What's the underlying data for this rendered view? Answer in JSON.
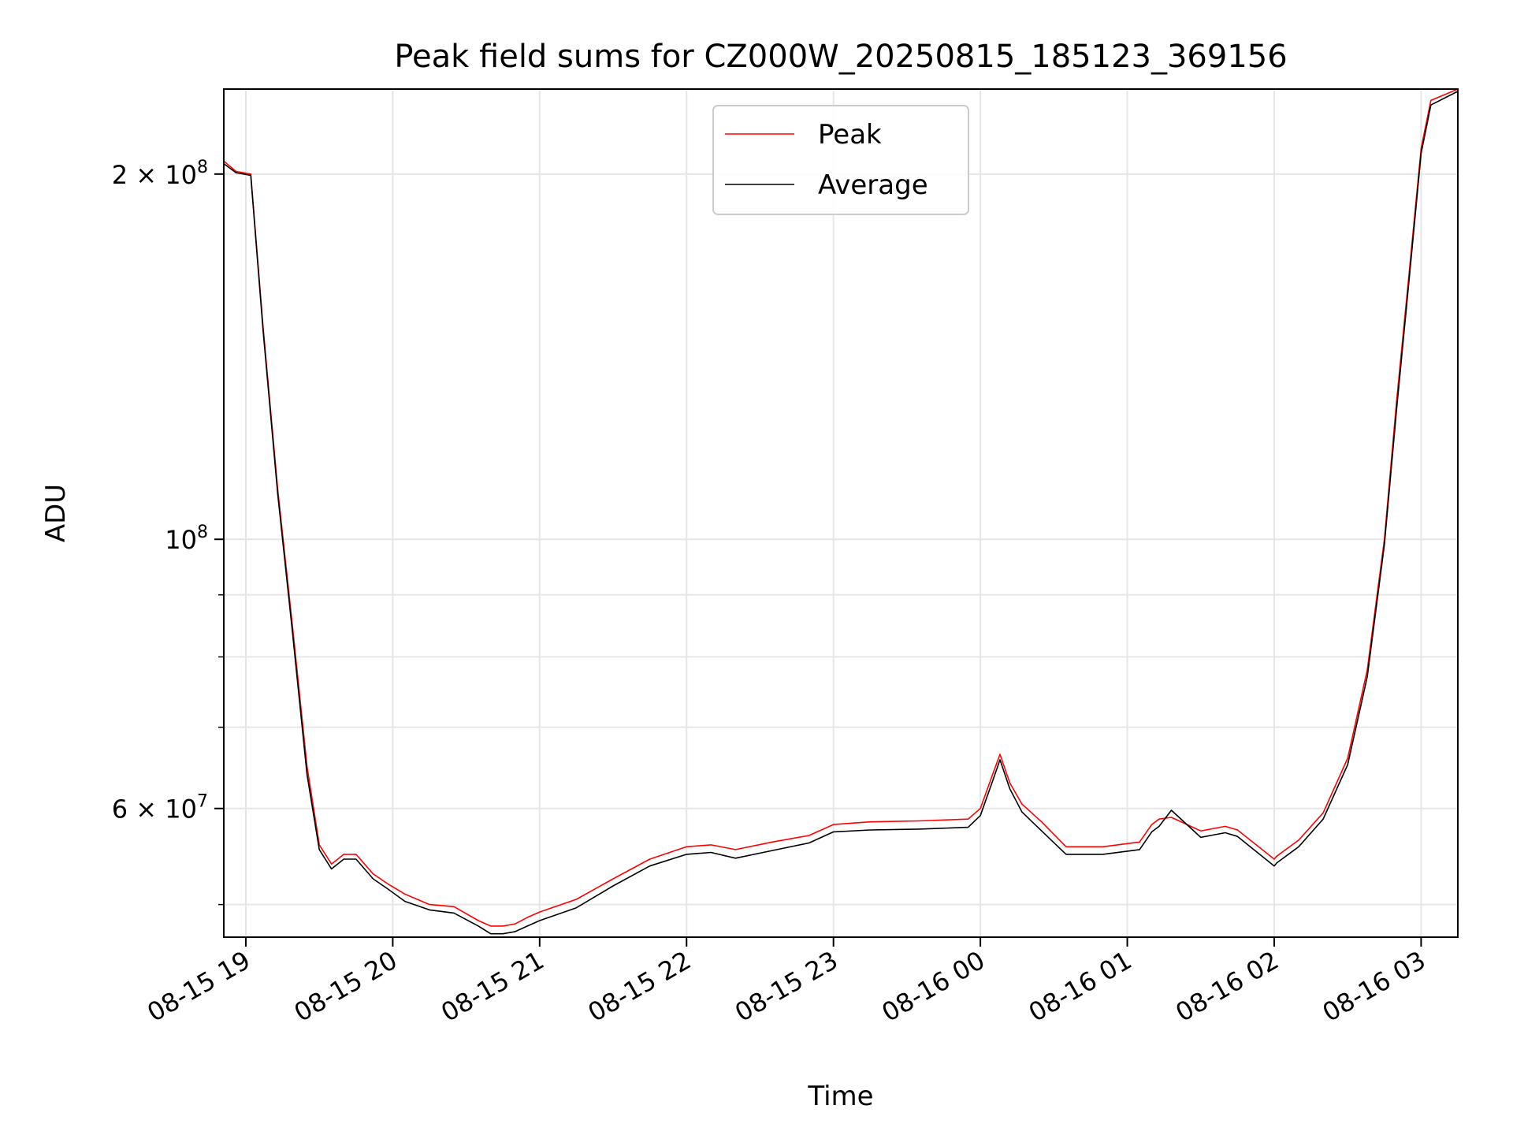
{
  "chart_data": {
    "type": "line",
    "title": "Peak field sums for CZ000W_20250815_185123_369156",
    "xlabel": "Time",
    "ylabel": "ADU",
    "yscale": "log",
    "xlim": [
      "2025-08-15 18:51",
      "2025-08-16 03:15"
    ],
    "ylim": [
      47000000,
      235000000
    ],
    "grid": true,
    "legend": {
      "position": "top-center",
      "entries": [
        "Peak",
        "Average"
      ]
    },
    "x_ticks": [
      "08-15 19",
      "08-15 20",
      "08-15 21",
      "08-15 22",
      "08-15 23",
      "08-16 00",
      "08-16 01",
      "08-16 02",
      "08-16 03"
    ],
    "y_ticks": [
      {
        "value": 200000000,
        "mantissa": "2",
        "exponent": "8"
      },
      {
        "value": 100000000,
        "mantissa": "",
        "exponent": "8"
      },
      {
        "value": 60000000,
        "mantissa": "6",
        "exponent": "7"
      }
    ],
    "series": [
      {
        "name": "Peak",
        "color": "#ff0000",
        "x": [
          "2025-08-15 18:51",
          "2025-08-15 18:56",
          "2025-08-15 19:02",
          "2025-08-15 19:07",
          "2025-08-15 19:13",
          "2025-08-15 19:19",
          "2025-08-15 19:25",
          "2025-08-15 19:30",
          "2025-08-15 19:35",
          "2025-08-15 19:40",
          "2025-08-15 19:45",
          "2025-08-15 19:52",
          "2025-08-15 19:58",
          "2025-08-15 20:05",
          "2025-08-15 20:15",
          "2025-08-15 20:25",
          "2025-08-15 20:35",
          "2025-08-15 20:40",
          "2025-08-15 20:45",
          "2025-08-15 20:50",
          "2025-08-15 20:55",
          "2025-08-15 21:00",
          "2025-08-15 21:15",
          "2025-08-15 21:30",
          "2025-08-15 21:45",
          "2025-08-15 22:00",
          "2025-08-15 22:10",
          "2025-08-15 22:20",
          "2025-08-15 22:35",
          "2025-08-15 22:50",
          "2025-08-15 23:00",
          "2025-08-15 23:15",
          "2025-08-15 23:35",
          "2025-08-15 23:55",
          "2025-08-16 00:00",
          "2025-08-16 00:05",
          "2025-08-16 00:08",
          "2025-08-16 00:12",
          "2025-08-16 00:17",
          "2025-08-16 00:25",
          "2025-08-16 00:35",
          "2025-08-16 00:50",
          "2025-08-16 01:05",
          "2025-08-16 01:10",
          "2025-08-16 01:13",
          "2025-08-16 01:18",
          "2025-08-16 01:30",
          "2025-08-16 01:40",
          "2025-08-16 01:45",
          "2025-08-16 02:00",
          "2025-08-16 02:01",
          "2025-08-16 02:10",
          "2025-08-16 02:20",
          "2025-08-16 02:30",
          "2025-08-16 02:38",
          "2025-08-16 02:45",
          "2025-08-16 02:50",
          "2025-08-16 02:55",
          "2025-08-16 03:00",
          "2025-08-16 03:04",
          "2025-08-16 03:15"
        ],
        "values": [
          205000000,
          201000000,
          200000000,
          150000000,
          110000000,
          85000000,
          65000000,
          56000000,
          54000000,
          55000000,
          55000000,
          53000000,
          52000000,
          51000000,
          50000000,
          49800000,
          48500000,
          48000000,
          48000000,
          48200000,
          48800000,
          49300000,
          50500000,
          52500000,
          54500000,
          55800000,
          56000000,
          55500000,
          56300000,
          57000000,
          58200000,
          58500000,
          58600000,
          58800000,
          60000000,
          64000000,
          66500000,
          63000000,
          60500000,
          58500000,
          55800000,
          55800000,
          56300000,
          58200000,
          58800000,
          59000000,
          57500000,
          58000000,
          57600000,
          54500000,
          54800000,
          56500000,
          59500000,
          66000000,
          78000000,
          100000000,
          130000000,
          165000000,
          210000000,
          230000000,
          235000000
        ]
      },
      {
        "name": "Average",
        "color": "#000000",
        "x": [
          "2025-08-15 18:51",
          "2025-08-15 18:56",
          "2025-08-15 19:02",
          "2025-08-15 19:07",
          "2025-08-15 19:13",
          "2025-08-15 19:19",
          "2025-08-15 19:25",
          "2025-08-15 19:30",
          "2025-08-15 19:35",
          "2025-08-15 19:40",
          "2025-08-15 19:45",
          "2025-08-15 19:52",
          "2025-08-15 19:58",
          "2025-08-15 20:05",
          "2025-08-15 20:15",
          "2025-08-15 20:25",
          "2025-08-15 20:35",
          "2025-08-15 20:40",
          "2025-08-15 20:45",
          "2025-08-15 20:50",
          "2025-08-15 20:55",
          "2025-08-15 21:00",
          "2025-08-15 21:15",
          "2025-08-15 21:30",
          "2025-08-15 21:45",
          "2025-08-15 22:00",
          "2025-08-15 22:10",
          "2025-08-15 22:20",
          "2025-08-15 22:35",
          "2025-08-15 22:50",
          "2025-08-15 23:00",
          "2025-08-15 23:15",
          "2025-08-15 23:35",
          "2025-08-15 23:55",
          "2025-08-16 00:00",
          "2025-08-16 00:05",
          "2025-08-16 00:08",
          "2025-08-16 00:12",
          "2025-08-16 00:17",
          "2025-08-16 00:25",
          "2025-08-16 00:35",
          "2025-08-16 00:50",
          "2025-08-16 01:05",
          "2025-08-16 01:10",
          "2025-08-16 01:13",
          "2025-08-16 01:18",
          "2025-08-16 01:30",
          "2025-08-16 01:40",
          "2025-08-16 01:45",
          "2025-08-16 02:00",
          "2025-08-16 02:01",
          "2025-08-16 02:10",
          "2025-08-16 02:20",
          "2025-08-16 02:30",
          "2025-08-16 02:38",
          "2025-08-16 02:45",
          "2025-08-16 02:50",
          "2025-08-16 02:55",
          "2025-08-16 03:00",
          "2025-08-16 03:04",
          "2025-08-16 03:15"
        ],
        "values": [
          204000000,
          200500000,
          199500000,
          149000000,
          109000000,
          84000000,
          64000000,
          55500000,
          53500000,
          54500000,
          54500000,
          52500000,
          51500000,
          50300000,
          49500000,
          49200000,
          48000000,
          47300000,
          47300000,
          47500000,
          48000000,
          48500000,
          49700000,
          51800000,
          53800000,
          55000000,
          55200000,
          54600000,
          55400000,
          56200000,
          57400000,
          57600000,
          57700000,
          57900000,
          59200000,
          63200000,
          65800000,
          62300000,
          59600000,
          57500000,
          55000000,
          55000000,
          55500000,
          57400000,
          58000000,
          59800000,
          56800000,
          57300000,
          56900000,
          53800000,
          54100000,
          55800000,
          58800000,
          65200000,
          77000000,
          99000000,
          128000000,
          163000000,
          208000000,
          228000000,
          234000000
        ]
      }
    ]
  }
}
